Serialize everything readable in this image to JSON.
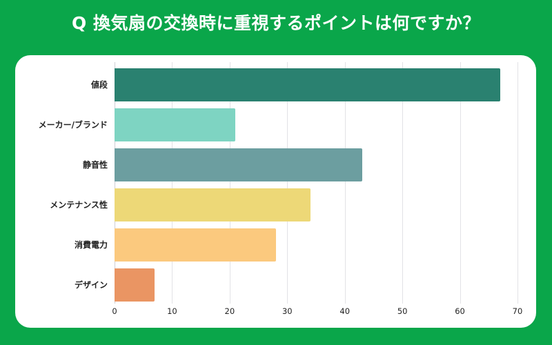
{
  "title": "Q 換気扇の交換時に重視するポイントは何ですか？",
  "colors": {
    "background": "#0AA64A",
    "card": "#FFFFFF"
  },
  "chart_data": {
    "type": "bar",
    "orientation": "horizontal",
    "title": "Q 換気扇の交換時に重視するポイントは何ですか？",
    "xlabel": "",
    "ylabel": "",
    "categories": [
      "値段",
      "メーカー/ブランド",
      "静音性",
      "メンテナンス性",
      "消費電力",
      "デザイン"
    ],
    "values": [
      67,
      21,
      43,
      34,
      28,
      7
    ],
    "bar_colors": [
      "#2A8170",
      "#7ED4C2",
      "#6C9EA0",
      "#EDD877",
      "#FBC97E",
      "#EA9563"
    ],
    "xlim": [
      0,
      70
    ],
    "xticks": [
      0,
      10,
      20,
      30,
      40,
      50,
      60,
      70
    ],
    "grid": true,
    "legend": null
  }
}
